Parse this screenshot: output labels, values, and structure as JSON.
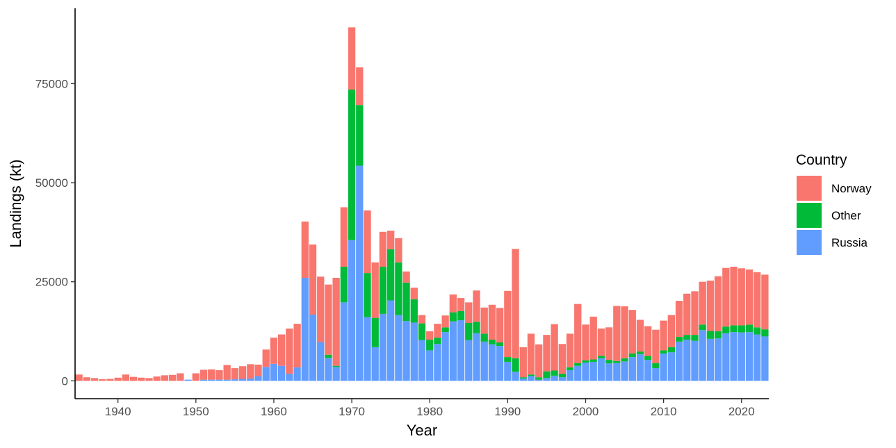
{
  "chart_data": {
    "type": "bar",
    "stacked": true,
    "xlabel": "Year",
    "ylabel": "Landings (kt)",
    "xlim": [
      1934.5,
      2023.5
    ],
    "ylim": [
      -4500,
      94000
    ],
    "x_ticks": [
      1940,
      1950,
      1960,
      1970,
      1980,
      1990,
      2000,
      2010,
      2020
    ],
    "x_tick_labels": [
      "1940",
      "1950",
      "1960",
      "1970",
      "1980",
      "1990",
      "2000",
      "2010",
      "2020"
    ],
    "y_ticks": [
      0,
      25000,
      50000,
      75000
    ],
    "y_tick_labels": [
      "0",
      "25000",
      "50000",
      "75000"
    ],
    "grid": false,
    "legend": {
      "title": "Country",
      "position": "right",
      "entries": [
        {
          "name": "Norway",
          "color": "#F8766D"
        },
        {
          "name": "Other",
          "color": "#00BA38"
        },
        {
          "name": "Russia",
          "color": "#619CFF"
        }
      ]
    },
    "x": [
      1935,
      1936,
      1937,
      1938,
      1939,
      1940,
      1941,
      1942,
      1943,
      1944,
      1945,
      1946,
      1947,
      1948,
      1949,
      1950,
      1951,
      1952,
      1953,
      1954,
      1955,
      1956,
      1957,
      1958,
      1959,
      1960,
      1961,
      1962,
      1963,
      1964,
      1965,
      1966,
      1967,
      1968,
      1969,
      1970,
      1971,
      1972,
      1973,
      1974,
      1975,
      1976,
      1977,
      1978,
      1979,
      1980,
      1981,
      1982,
      1983,
      1984,
      1985,
      1986,
      1987,
      1988,
      1989,
      1990,
      1991,
      1992,
      1993,
      1994,
      1995,
      1996,
      1997,
      1998,
      1999,
      2000,
      2001,
      2002,
      2003,
      2004,
      2005,
      2006,
      2007,
      2008,
      2009,
      2010,
      2011,
      2012,
      2013,
      2014,
      2015,
      2016,
      2017,
      2018,
      2019,
      2020,
      2021,
      2022,
      2023
    ],
    "series": [
      {
        "name": "Russia",
        "color": "#619CFF",
        "values": [
          0,
          0,
          0,
          0,
          0,
          0,
          0,
          0,
          0,
          0,
          0,
          0,
          0,
          0,
          300,
          0,
          300,
          300,
          300,
          300,
          400,
          500,
          600,
          1200,
          3500,
          4300,
          3800,
          1800,
          3400,
          26000,
          16700,
          9800,
          5800,
          3500,
          19800,
          35500,
          54300,
          16100,
          8500,
          16900,
          20300,
          16600,
          15100,
          14700,
          10300,
          7700,
          9300,
          12300,
          15000,
          15300,
          10300,
          12000,
          9900,
          9200,
          8800,
          4800,
          2300,
          600,
          1200,
          300,
          700,
          1300,
          900,
          2700,
          3800,
          4600,
          4800,
          5700,
          4400,
          4500,
          4900,
          6000,
          6700,
          5300,
          3200,
          6900,
          7200,
          9900,
          10400,
          10100,
          12800,
          10600,
          10700,
          12000,
          12300,
          12200,
          12300,
          11700,
          11200
        ]
      },
      {
        "name": "Other",
        "color": "#00BA38",
        "values": [
          0,
          0,
          0,
          0,
          0,
          0,
          0,
          0,
          0,
          0,
          0,
          0,
          0,
          0,
          0,
          0,
          0,
          0,
          0,
          0,
          0,
          0,
          0,
          0,
          0,
          0,
          0,
          0,
          0,
          0,
          0,
          0,
          800,
          300,
          9000,
          38000,
          15300,
          11100,
          7400,
          11900,
          12900,
          13300,
          9700,
          5900,
          4200,
          2700,
          1600,
          1200,
          2300,
          2300,
          4300,
          2900,
          2000,
          1200,
          900,
          1200,
          3400,
          300,
          400,
          600,
          1700,
          1300,
          900,
          700,
          700,
          600,
          600,
          600,
          900,
          500,
          800,
          900,
          700,
          1000,
          1300,
          800,
          1300,
          1200,
          1200,
          1500,
          1400,
          2000,
          1800,
          1700,
          1700,
          1800,
          1900,
          1800,
          1800
        ]
      },
      {
        "name": "Norway",
        "color": "#F8766D",
        "values": [
          1600,
          900,
          700,
          400,
          500,
          800,
          1600,
          1000,
          800,
          700,
          1100,
          1400,
          1500,
          1900,
          0,
          1900,
          2500,
          2600,
          2400,
          3700,
          2800,
          3200,
          3600,
          2900,
          4400,
          6600,
          7900,
          11400,
          11000,
          14200,
          17700,
          16500,
          17700,
          22200,
          15000,
          15700,
          9500,
          15800,
          14000,
          8800,
          4700,
          6100,
          2800,
          2900,
          2100,
          2100,
          3500,
          3000,
          4500,
          3300,
          5200,
          7900,
          6600,
          8800,
          8700,
          16700,
          27600,
          7600,
          10300,
          8300,
          9200,
          11700,
          7500,
          8500,
          14900,
          9000,
          10800,
          6900,
          8200,
          13900,
          13100,
          11000,
          8000,
          7500,
          8400,
          7500,
          8100,
          9100,
          10400,
          11000,
          10800,
          12700,
          13900,
          14800,
          14800,
          14400,
          13900,
          13900,
          13800
        ]
      }
    ]
  }
}
